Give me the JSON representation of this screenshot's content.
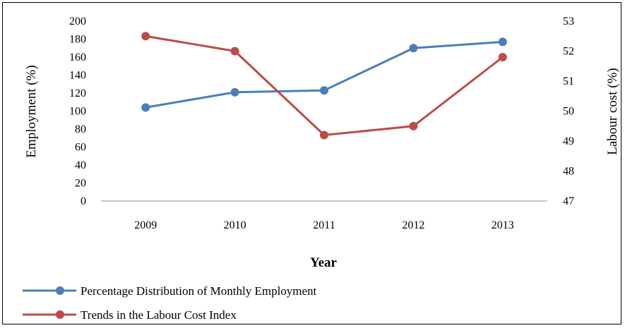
{
  "chart_data": {
    "type": "line",
    "title": "",
    "xlabel": "Year",
    "ylabel": "Employment (%)",
    "y2label": "Labour cost (%)",
    "categories": [
      "2009",
      "2010",
      "2011",
      "2012",
      "2013"
    ],
    "ylim": [
      0,
      200
    ],
    "yticks": [
      "0",
      "20",
      "40",
      "60",
      "80",
      "100",
      "120",
      "140",
      "160",
      "180",
      "200"
    ],
    "y2lim": [
      47,
      53
    ],
    "y2ticks": [
      "47",
      "48",
      "49",
      "50",
      "51",
      "52",
      "53"
    ],
    "grid": false,
    "legend_position": "bottom-left",
    "series": [
      {
        "name": "Percentage Distribution of Monthly Employment",
        "axis": "left",
        "color": "#4a7ebb",
        "values": [
          104,
          121,
          123,
          170,
          177
        ]
      },
      {
        "name": "Trends in the Labour Cost Index",
        "axis": "right",
        "color": "#be4b48",
        "values": [
          52.5,
          52.0,
          49.2,
          49.5,
          51.8
        ]
      }
    ]
  }
}
